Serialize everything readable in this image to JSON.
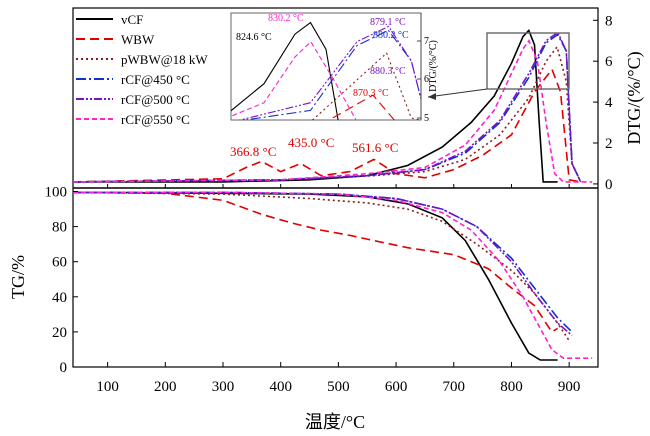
{
  "chart_data": {
    "type": "line",
    "xlabel": "温度/°C",
    "xlim": [
      40,
      950
    ],
    "x_ticks": [
      100,
      200,
      300,
      400,
      500,
      600,
      700,
      800,
      900
    ],
    "dtg": {
      "ylabel": "DTG/(%/°C)",
      "ylim": [
        -0.2,
        8.6
      ],
      "y_ticks": [
        0,
        2,
        4,
        6,
        8
      ]
    },
    "tg": {
      "ylabel": "TG/%",
      "ylim": [
        0,
        102
      ],
      "y_ticks": [
        0,
        20,
        40,
        60,
        80,
        100
      ]
    },
    "legend": {
      "placement": "top-left",
      "entries": [
        "vCF",
        "WBW",
        "pWBW@18 kW",
        "rCF@450 °C",
        "rCF@500 °C",
        "rCF@550 °C"
      ]
    },
    "peak_labels": [
      "366.8 °C",
      "435.0 °C",
      "561.6 °C"
    ],
    "inset": {
      "ylabel": "DTG/(%/°C)",
      "y_ticks": [
        5,
        6,
        7
      ],
      "labels": [
        "830.2 °C",
        "824.6 °C",
        "879.1 °C",
        "880.2 °C",
        "880.3 °C",
        "870.3 °C"
      ]
    },
    "series": [
      {
        "name": "vCF",
        "color": "#000000",
        "dash": "solid",
        "dtg": [
          [
            40,
            0.1
          ],
          [
            300,
            0.1
          ],
          [
            450,
            0.2
          ],
          [
            550,
            0.4
          ],
          [
            620,
            0.9
          ],
          [
            680,
            1.8
          ],
          [
            730,
            3.0
          ],
          [
            770,
            4.3
          ],
          [
            800,
            5.9
          ],
          [
            820,
            7.2
          ],
          [
            830,
            7.5
          ],
          [
            840,
            6.8
          ],
          [
            848,
            3.0
          ],
          [
            855,
            0.1
          ],
          [
            880,
            0.1
          ]
        ],
        "tg": [
          [
            40,
            99.5
          ],
          [
            300,
            99
          ],
          [
            450,
            98.5
          ],
          [
            550,
            97
          ],
          [
            620,
            93
          ],
          [
            680,
            85
          ],
          [
            720,
            72
          ],
          [
            760,
            50
          ],
          [
            800,
            25
          ],
          [
            830,
            8
          ],
          [
            850,
            4
          ],
          [
            880,
            4
          ]
        ]
      },
      {
        "name": "WBW",
        "color": "#e00000",
        "dash": "9,5",
        "dtg": [
          [
            40,
            0.1
          ],
          [
            300,
            0.25
          ],
          [
            340,
            0.8
          ],
          [
            366.8,
            1.1
          ],
          [
            400,
            0.6
          ],
          [
            435,
            1.0
          ],
          [
            470,
            0.4
          ],
          [
            520,
            0.6
          ],
          [
            561.6,
            1.2
          ],
          [
            600,
            0.5
          ],
          [
            650,
            0.3
          ],
          [
            700,
            0.7
          ],
          [
            750,
            1.4
          ],
          [
            800,
            2.4
          ],
          [
            840,
            4.5
          ],
          [
            870.3,
            5.6
          ],
          [
            885,
            4.5
          ],
          [
            900,
            0.2
          ],
          [
            920,
            0.1
          ]
        ],
        "tg": [
          [
            40,
            99.5
          ],
          [
            200,
            99
          ],
          [
            300,
            95
          ],
          [
            366.8,
            87
          ],
          [
            420,
            82
          ],
          [
            470,
            78
          ],
          [
            520,
            75
          ],
          [
            561.6,
            72
          ],
          [
            620,
            68
          ],
          [
            700,
            64
          ],
          [
            760,
            56
          ],
          [
            800,
            45
          ],
          [
            840,
            35
          ],
          [
            870,
            20
          ],
          [
            880,
            22
          ]
        ]
      },
      {
        "name": "pWBW@18 kW",
        "color": "#8b1c1c",
        "dash": "2,3",
        "dtg": [
          [
            40,
            0.1
          ],
          [
            400,
            0.2
          ],
          [
            480,
            0.3
          ],
          [
            560,
            0.4
          ],
          [
            650,
            0.6
          ],
          [
            720,
            1.2
          ],
          [
            780,
            2.4
          ],
          [
            830,
            4.2
          ],
          [
            860,
            6.0
          ],
          [
            879.1,
            6.7
          ],
          [
            895,
            5.0
          ],
          [
            905,
            1.0
          ],
          [
            920,
            0.1
          ]
        ],
        "tg": [
          [
            40,
            99.5
          ],
          [
            300,
            98.5
          ],
          [
            450,
            96
          ],
          [
            550,
            93.5
          ],
          [
            620,
            90
          ],
          [
            680,
            83
          ],
          [
            740,
            70
          ],
          [
            800,
            55
          ],
          [
            840,
            42
          ],
          [
            880,
            25
          ],
          [
            900,
            15
          ]
        ]
      },
      {
        "name": "rCF@450 °C",
        "color": "#1030d0",
        "dash": "10,3,2,3",
        "dtg": [
          [
            40,
            0.1
          ],
          [
            400,
            0.2
          ],
          [
            550,
            0.4
          ],
          [
            650,
            0.7
          ],
          [
            720,
            1.5
          ],
          [
            780,
            3.0
          ],
          [
            830,
            5.2
          ],
          [
            860,
            6.9
          ],
          [
            880.2,
            7.3
          ],
          [
            895,
            6.5
          ],
          [
            905,
            1.0
          ],
          [
            920,
            0.1
          ]
        ],
        "tg": [
          [
            40,
            99.5
          ],
          [
            300,
            99.5
          ],
          [
            500,
            98.5
          ],
          [
            600,
            96
          ],
          [
            680,
            90
          ],
          [
            740,
            80
          ],
          [
            800,
            62
          ],
          [
            840,
            45
          ],
          [
            880,
            28
          ],
          [
            905,
            20
          ]
        ]
      },
      {
        "name": "rCF@500 °C",
        "color": "#7a10c8",
        "dash": "8,2,2,2,2,2",
        "dtg": [
          [
            40,
            0.1
          ],
          [
            400,
            0.2
          ],
          [
            550,
            0.4
          ],
          [
            650,
            0.7
          ],
          [
            720,
            1.6
          ],
          [
            780,
            3.1
          ],
          [
            830,
            5.4
          ],
          [
            860,
            7.0
          ],
          [
            880.3,
            7.4
          ],
          [
            895,
            6.5
          ],
          [
            905,
            1.0
          ],
          [
            920,
            0.1
          ]
        ],
        "tg": [
          [
            40,
            99.5
          ],
          [
            300,
            99.5
          ],
          [
            500,
            98.5
          ],
          [
            600,
            96
          ],
          [
            680,
            90
          ],
          [
            740,
            80
          ],
          [
            800,
            60
          ],
          [
            840,
            42
          ],
          [
            880,
            25
          ],
          [
            905,
            18
          ]
        ]
      },
      {
        "name": "rCF@550 °C",
        "color": "#ff20d0",
        "dash": "5,3",
        "dtg": [
          [
            40,
            0.1
          ],
          [
            400,
            0.2
          ],
          [
            550,
            0.5
          ],
          [
            650,
            0.8
          ],
          [
            720,
            1.9
          ],
          [
            770,
            3.6
          ],
          [
            800,
            5.4
          ],
          [
            820,
            6.6
          ],
          [
            830.2,
            7.0
          ],
          [
            845,
            6.0
          ],
          [
            860,
            3.0
          ],
          [
            875,
            0.5
          ],
          [
            890,
            0.1
          ],
          [
            940,
            0.1
          ]
        ],
        "tg": [
          [
            40,
            99.5
          ],
          [
            300,
            99.5
          ],
          [
            500,
            98.5
          ],
          [
            600,
            95
          ],
          [
            680,
            88
          ],
          [
            730,
            78
          ],
          [
            780,
            60
          ],
          [
            820,
            40
          ],
          [
            850,
            22
          ],
          [
            870,
            10
          ],
          [
            890,
            5
          ],
          [
            940,
            5
          ]
        ]
      }
    ]
  }
}
